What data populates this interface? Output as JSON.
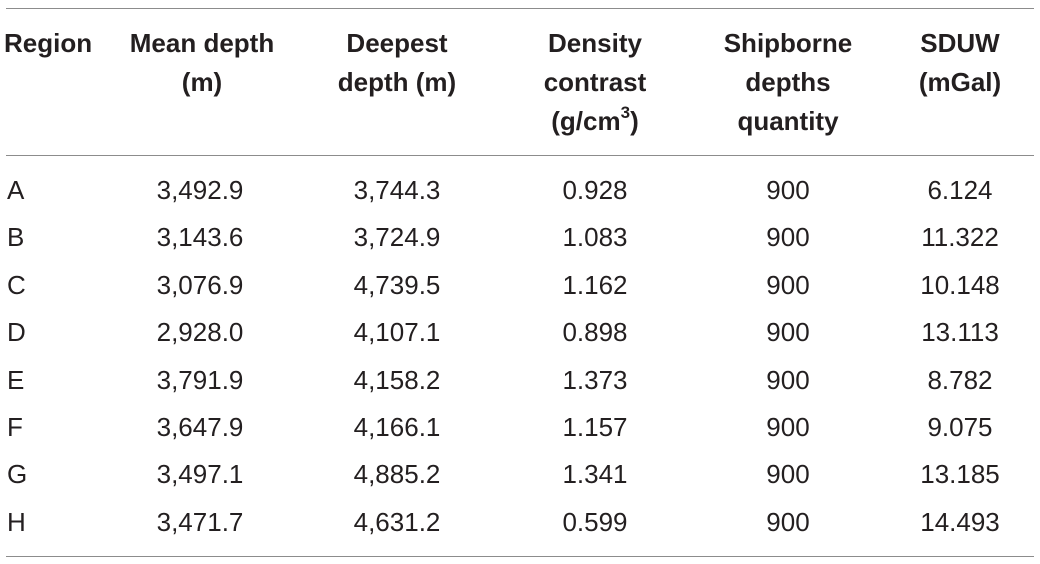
{
  "table": {
    "headers": [
      [
        "Region"
      ],
      [
        "Mean depth",
        "(m)"
      ],
      [
        "Deepest",
        "depth (m)"
      ],
      [
        "Density",
        "contrast",
        "(g/cm",
        "3",
        ")"
      ],
      [
        "Shipborne",
        "depths",
        "quantity"
      ],
      [
        "SDUW",
        "(mGal)"
      ]
    ],
    "rows": [
      [
        "A",
        "3,492.9",
        "3,744.3",
        "0.928",
        "900",
        "6.124"
      ],
      [
        "B",
        "3,143.6",
        "3,724.9",
        "1.083",
        "900",
        "11.322"
      ],
      [
        "C",
        "3,076.9",
        "4,739.5",
        "1.162",
        "900",
        "10.148"
      ],
      [
        "D",
        "2,928.0",
        "4,107.1",
        "0.898",
        "900",
        "13.113"
      ],
      [
        "E",
        "3,791.9",
        "4,158.2",
        "1.373",
        "900",
        "8.782"
      ],
      [
        "F",
        "3,647.9",
        "4,166.1",
        "1.157",
        "900",
        "9.075"
      ],
      [
        "G",
        "3,497.1",
        "4,885.2",
        "1.341",
        "900",
        "13.185"
      ],
      [
        "H",
        "3,471.7",
        "4,631.2",
        "0.599",
        "900",
        "14.493"
      ]
    ]
  }
}
